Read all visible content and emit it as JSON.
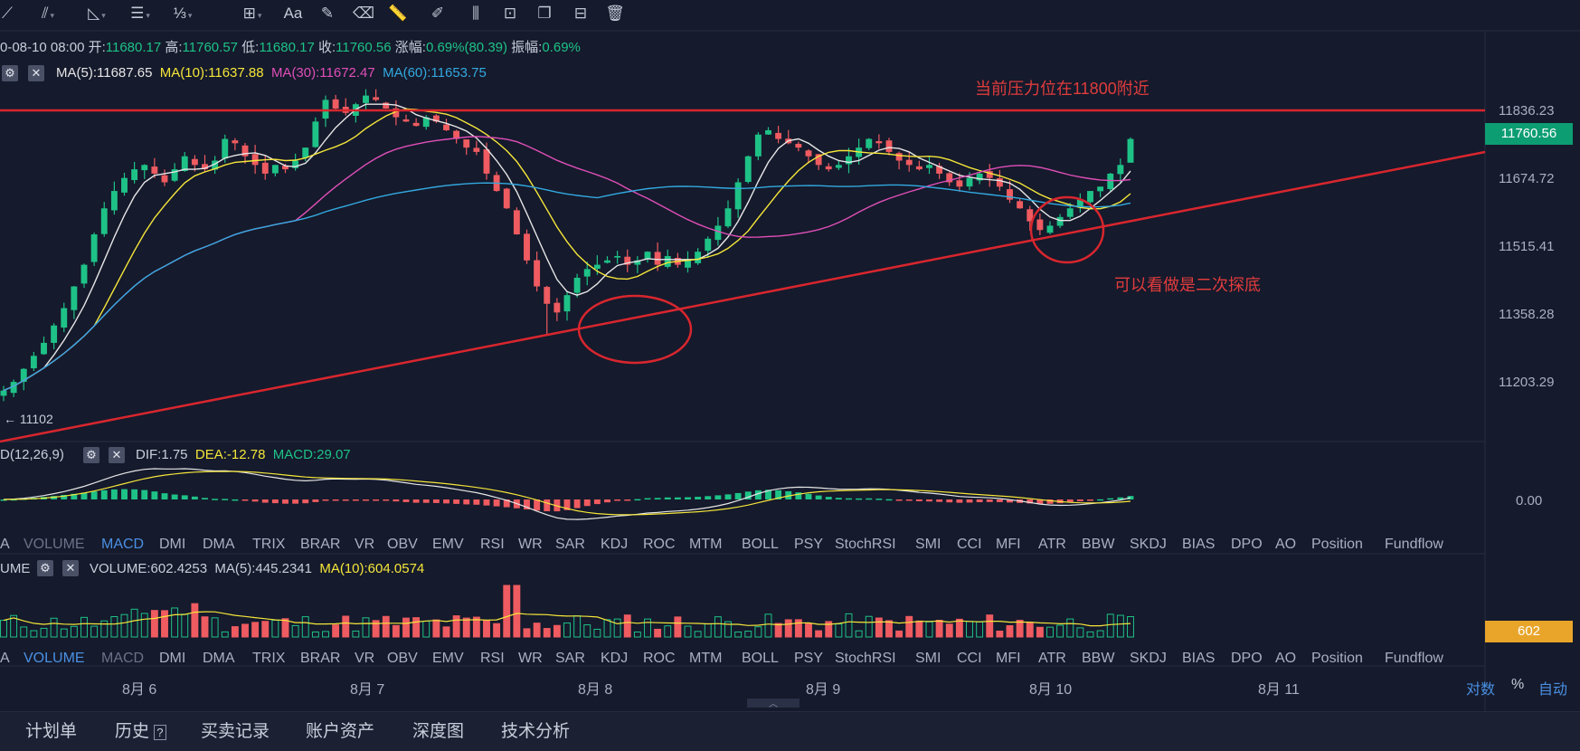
{
  "toolbar": {
    "icons": [
      "trend-line-icon",
      "horizontal-line-icon",
      "fib-icon",
      "pattern-icon",
      "text-icon",
      "brush-icon",
      "ruler-icon",
      "measure-icon",
      "lock-icon",
      "copy-icon",
      "hide-icon",
      "delete-icon"
    ],
    "text_tool_label": "Aa"
  },
  "ohlc": {
    "date": "0-08-10 08:00",
    "open_label": "开:",
    "open": "11680.17",
    "high_label": "高:",
    "high": "11760.57",
    "low_label": "低:",
    "low": "11680.17",
    "close_label": "收:",
    "close": "11760.56",
    "change_label": "涨幅:",
    "change": "0.69%(80.39)",
    "amplitude_label": "振幅:",
    "amplitude": "0.69%"
  },
  "ma_legend": {
    "ma5": "MA(5):11687.65",
    "ma10": "MA(10):11637.88",
    "ma30": "MA(30):11672.47",
    "ma60": "MA(60):11653.75"
  },
  "annotations": {
    "resistance": "当前压力位在11800附近",
    "second_bottom": "可以看做是二次探底",
    "low_marker": "← 11102"
  },
  "macd_legend": {
    "name": "D(12,26,9)",
    "dif": "DIF:1.75",
    "dea": "DEA:-12.78",
    "macd": "MACD:29.07"
  },
  "volume_legend": {
    "name": "UME",
    "volume": "VOLUME:602.4253",
    "ma5": "MA(5):445.2341",
    "ma10": "MA(10):604.0574"
  },
  "indicator_tabs": [
    "A",
    "VOLUME",
    "MACD",
    "DMI",
    "DMA",
    "TRIX",
    "BRAR",
    "VR",
    "OBV",
    "EMV",
    "RSI",
    "WR",
    "SAR",
    "KDJ",
    "ROC",
    "MTM",
    "BOLL",
    "PSY",
    "StochRSI",
    "SMI",
    "CCI",
    "MFI",
    "ATR",
    "BBW",
    "SKDJ",
    "BIAS",
    "DPO",
    "AO",
    "Position",
    "Fundflow"
  ],
  "tabs_active": {
    "row1": "MACD",
    "row2": "VOLUME"
  },
  "price_axis": [
    "11836.23",
    "11674.72",
    "11515.41",
    "11358.28",
    "11203.29"
  ],
  "current_price_tag": "11760.56",
  "macd_axis": "0.00",
  "volume_tag": "602",
  "time_axis": [
    "8月 6",
    "8月 7",
    "8月 8",
    "8月 9",
    "8月 10",
    "8月 11"
  ],
  "axis_controls": [
    "对数",
    "%",
    "自动"
  ],
  "bottom_nav": [
    "计划单",
    "历史",
    "买卖记录",
    "账户资产",
    "深度图",
    "技术分析"
  ],
  "colors": {
    "up": "#1ec287",
    "down": "#ee5b60",
    "ma5": "#e6e6e6",
    "ma10": "#f5e63a",
    "ma30": "#e04fb8",
    "ma60": "#33a9e0",
    "annotation": "#e03c3c",
    "current_tag": "#0d9d73",
    "volume_tag": "#e8a52a",
    "active_tab": "#4a90e2"
  },
  "chart_data": {
    "type": "candlestick",
    "interval": "1h",
    "price_range": [
      11100,
      11880
    ],
    "resistance_level": 11800,
    "swing_low": 11102,
    "low_8_8": 11310,
    "last_close": 11760.56,
    "closes": [
      11180,
      11200,
      11230,
      11260,
      11290,
      11330,
      11370,
      11420,
      11470,
      11540,
      11600,
      11640,
      11670,
      11690,
      11700,
      11680,
      11660,
      11690,
      11720,
      11700,
      11690,
      11710,
      11760,
      11750,
      11720,
      11700,
      11680,
      11700,
      11690,
      11710,
      11740,
      11800,
      11850,
      11830,
      11820,
      11840,
      11860,
      11850,
      11830,
      11810,
      11800,
      11790,
      11810,
      11800,
      11780,
      11760,
      11740,
      11730,
      11680,
      11640,
      11600,
      11540,
      11480,
      11420,
      11380,
      11360,
      11400,
      11440,
      11460,
      11470,
      11480,
      11490,
      11470,
      11480,
      11500,
      11470,
      11490,
      11470,
      11480,
      11500,
      11530,
      11560,
      11600,
      11660,
      11720,
      11770,
      11780,
      11760,
      11750,
      11740,
      11720,
      11700,
      11690,
      11700,
      11720,
      11740,
      11760,
      11750,
      11730,
      11710,
      11700,
      11690,
      11700,
      11680,
      11660,
      11650,
      11670,
      11680,
      11670,
      11650,
      11620,
      11600,
      11570,
      11550,
      11560,
      11580,
      11600,
      11620,
      11640,
      11650,
      11680,
      11700,
      11760
    ],
    "volume_ma10_last": 604.0574,
    "volume_last": 602.4253
  }
}
